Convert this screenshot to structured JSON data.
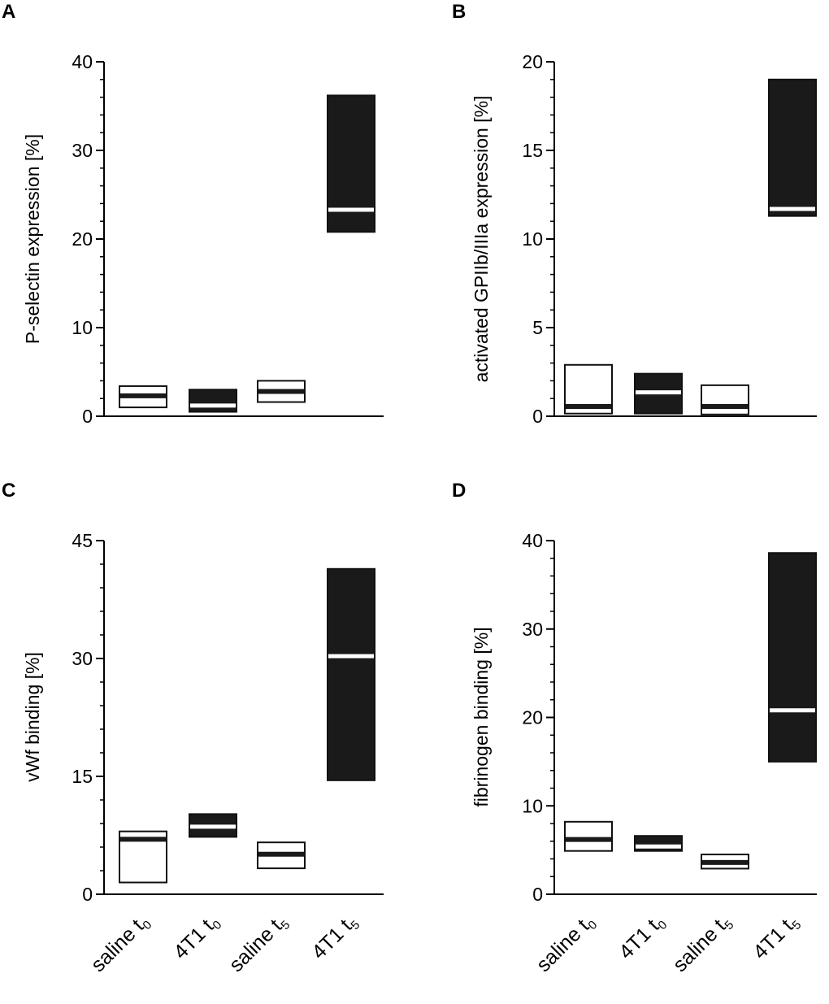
{
  "chart_data": [
    {
      "panel": "A",
      "type": "box",
      "ylabel": "P-selectin expression [%]",
      "ylim": [
        0,
        40
      ],
      "yticks": [
        "0",
        "10",
        "20",
        "30",
        "40"
      ],
      "show_xlabels": false,
      "categories": [
        "saline t0",
        "4T1 t0",
        "saline t5",
        "4T1 t5"
      ],
      "boxes": [
        {
          "group": "saline t0",
          "fill": "white",
          "q1": 1.0,
          "q3": 3.4,
          "median": 2.3
        },
        {
          "group": "4T1 t0",
          "fill": "black",
          "q1": 0.5,
          "q3": 3.0,
          "median": 1.2
        },
        {
          "group": "saline t5",
          "fill": "white",
          "q1": 1.6,
          "q3": 4.0,
          "median": 2.8
        },
        {
          "group": "4T1 t5",
          "fill": "black",
          "q1": 20.8,
          "q3": 36.2,
          "median": 23.3
        }
      ]
    },
    {
      "panel": "B",
      "type": "box",
      "ylabel": "activated GPIIb/IIIa expression [%]",
      "ylim": [
        0,
        20
      ],
      "yticks": [
        "0",
        "5",
        "10",
        "15",
        "20"
      ],
      "show_xlabels": false,
      "categories": [
        "saline t0",
        "4T1 t0",
        "saline t5",
        "4T1 t5"
      ],
      "boxes": [
        {
          "group": "saline t0",
          "fill": "white",
          "q1": 0.15,
          "q3": 2.9,
          "median": 0.55
        },
        {
          "group": "4T1 t0",
          "fill": "black",
          "q1": 0.15,
          "q3": 2.4,
          "median": 1.35
        },
        {
          "group": "saline t5",
          "fill": "white",
          "q1": 0.1,
          "q3": 1.75,
          "median": 0.55
        },
        {
          "group": "4T1 t5",
          "fill": "black",
          "q1": 11.3,
          "q3": 19.0,
          "median": 11.7
        }
      ]
    },
    {
      "panel": "C",
      "type": "box",
      "ylabel": "vWf binding [%]",
      "ylim": [
        0,
        45
      ],
      "yticks": [
        "0",
        "15",
        "30",
        "45"
      ],
      "show_xlabels": true,
      "categories": [
        "saline t0",
        "4T1 t0",
        "saline t5",
        "4T1 t5"
      ],
      "boxes": [
        {
          "group": "saline t0",
          "fill": "white",
          "q1": 1.5,
          "q3": 8.0,
          "median": 7.0
        },
        {
          "group": "4T1 t0",
          "fill": "black",
          "q1": 7.3,
          "q3": 10.2,
          "median": 8.6
        },
        {
          "group": "saline t5",
          "fill": "white",
          "q1": 3.3,
          "q3": 6.6,
          "median": 5.1
        },
        {
          "group": "4T1 t5",
          "fill": "black",
          "q1": 14.5,
          "q3": 41.4,
          "median": 30.3
        }
      ]
    },
    {
      "panel": "D",
      "type": "box",
      "ylabel": "fibrinogen binding [%]",
      "ylim": [
        0,
        40
      ],
      "yticks": [
        "0",
        "10",
        "20",
        "30",
        "40"
      ],
      "show_xlabels": true,
      "categories": [
        "saline t0",
        "4T1 t0",
        "saline t5",
        "4T1 t5"
      ],
      "boxes": [
        {
          "group": "saline t0",
          "fill": "white",
          "q1": 4.9,
          "q3": 8.2,
          "median": 6.2
        },
        {
          "group": "4T1 t0",
          "fill": "black",
          "q1": 4.9,
          "q3": 6.6,
          "median": 5.4
        },
        {
          "group": "saline t5",
          "fill": "white",
          "q1": 2.9,
          "q3": 4.5,
          "median": 3.6
        },
        {
          "group": "4T1 t5",
          "fill": "black",
          "q1": 15.0,
          "q3": 38.6,
          "median": 20.8
        }
      ]
    }
  ],
  "xlabels": [
    {
      "main": "saline t",
      "sub": "0"
    },
    {
      "main": "4T1 t",
      "sub": "0"
    },
    {
      "main": "saline t",
      "sub": "5"
    },
    {
      "main": "4T1 t",
      "sub": "5"
    }
  ],
  "colors": {
    "dark": "#1a1a1a",
    "light": "#ffffff",
    "stroke": "#111111"
  }
}
